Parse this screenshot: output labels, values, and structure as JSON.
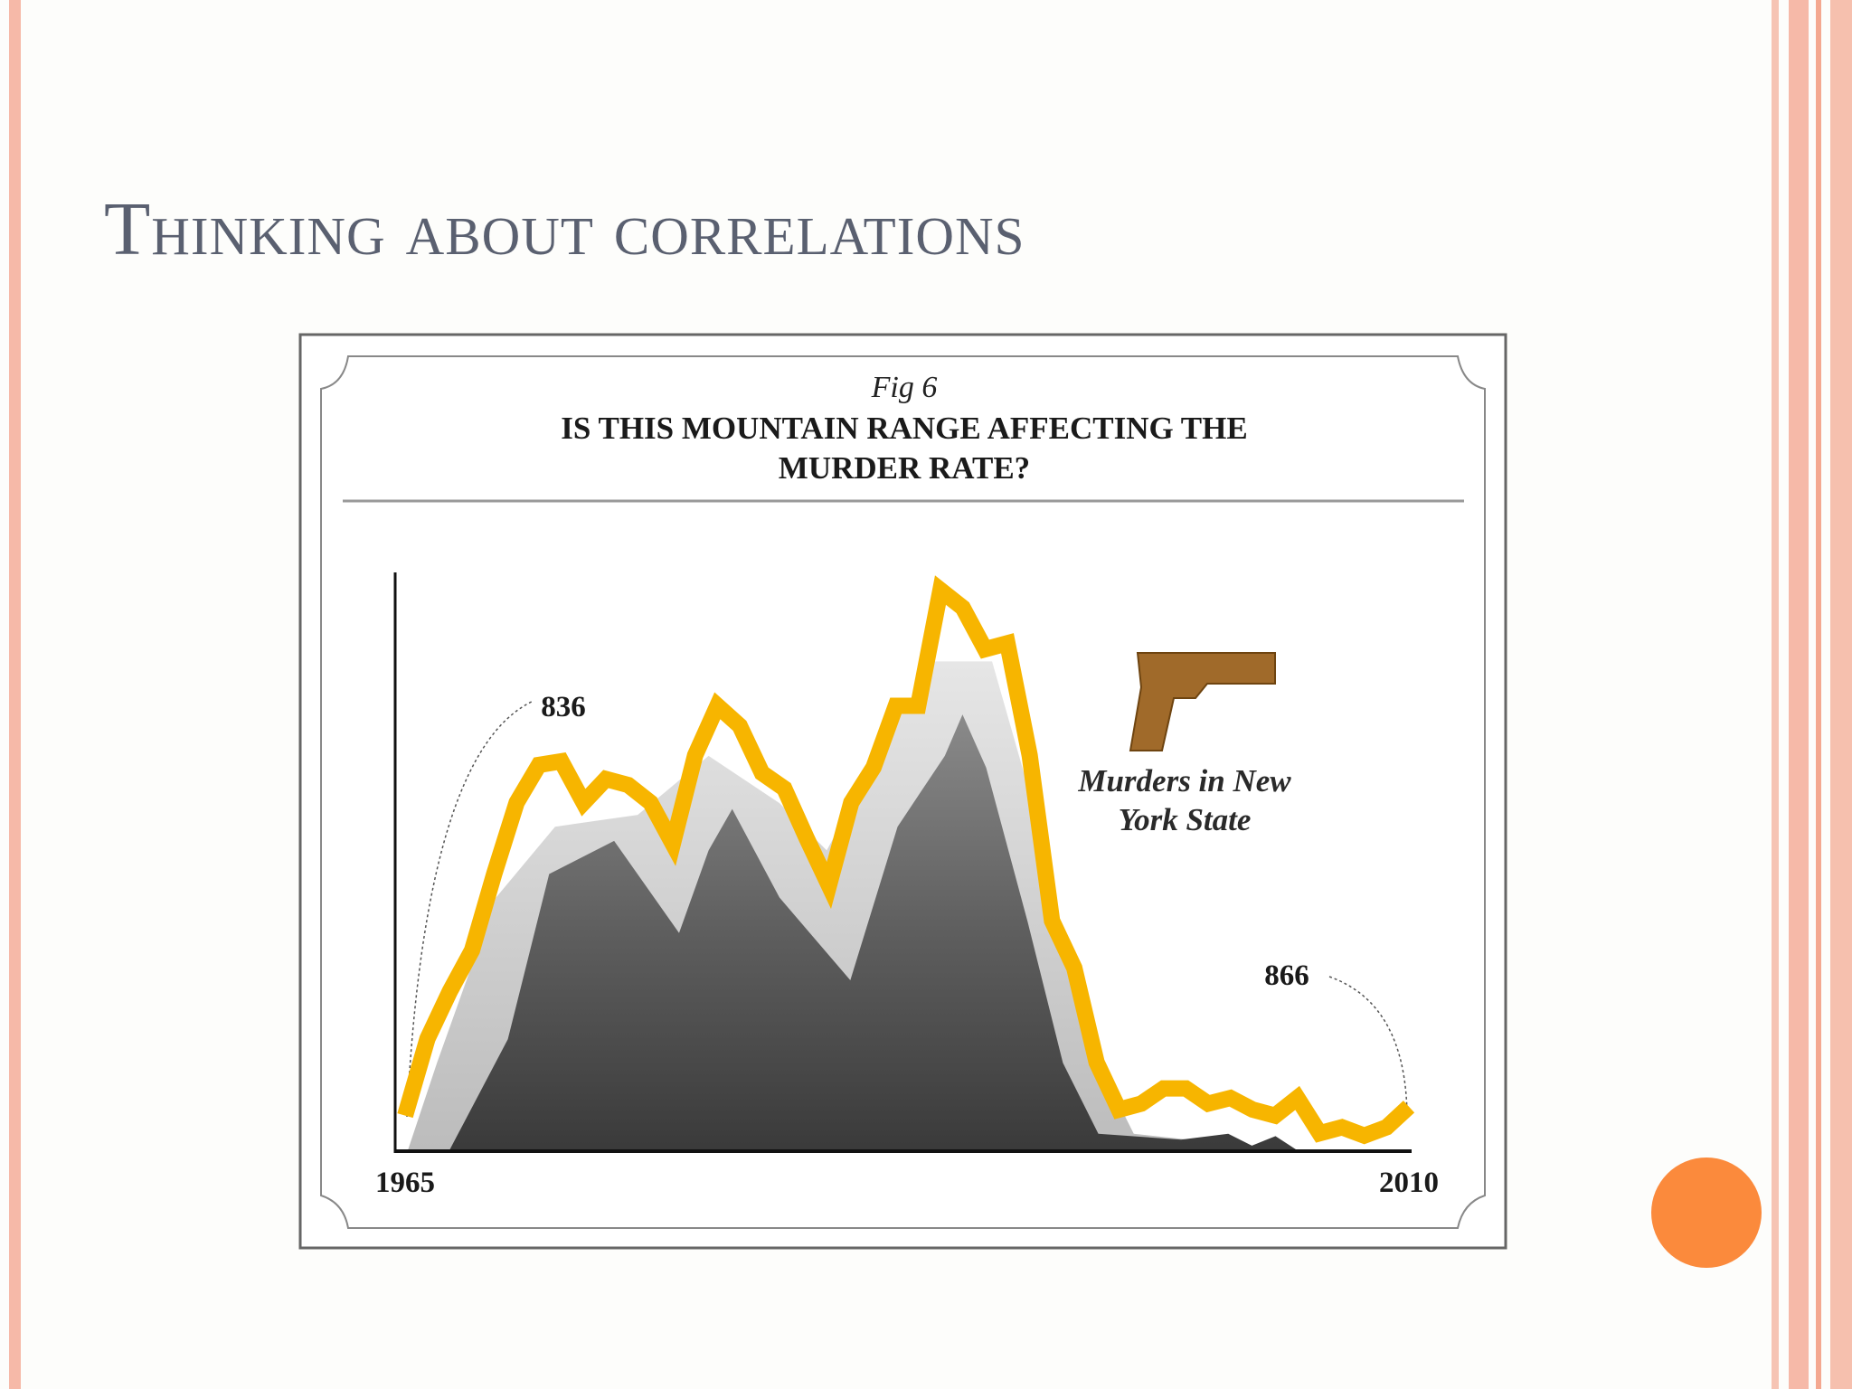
{
  "slide": {
    "title": "Thinking about correlations"
  },
  "chart_data": {
    "type": "line",
    "subtitle": "Fig 6",
    "title": "IS THIS MOUNTAIN RANGE AFFECTING THE MURDER RATE?",
    "x": [
      1965,
      1966,
      1967,
      1968,
      1969,
      1970,
      1971,
      1972,
      1973,
      1974,
      1975,
      1976,
      1977,
      1978,
      1979,
      1980,
      1981,
      1982,
      1983,
      1984,
      1985,
      1986,
      1987,
      1988,
      1989,
      1990,
      1991,
      1992,
      1993,
      1994,
      1995,
      1996,
      1997,
      1998,
      1999,
      2000,
      2001,
      2002,
      2003,
      2004,
      2005,
      2006,
      2007,
      2008,
      2009,
      2010
    ],
    "series": [
      {
        "name": "Murders in New York State",
        "color": "#f7b500",
        "values": [
          836,
          1093,
          1251,
          1389,
          1646,
          1883,
          2009,
          2021,
          1883,
          1962,
          1942,
          1883,
          1745,
          2041,
          2207,
          2140,
          1982,
          1930,
          1764,
          1606,
          1883,
          2001,
          2207,
          2207,
          2594,
          2535,
          2396,
          2416,
          2041,
          1488,
          1330,
          1014,
          856,
          876,
          927,
          927,
          876,
          895,
          856,
          836,
          895,
          777,
          797,
          769,
          797,
          866
        ]
      }
    ],
    "xlim": [
      1965,
      2010
    ],
    "xticks": [
      1965,
      2010
    ],
    "ylim": [
      717,
      2653
    ]
  }
}
